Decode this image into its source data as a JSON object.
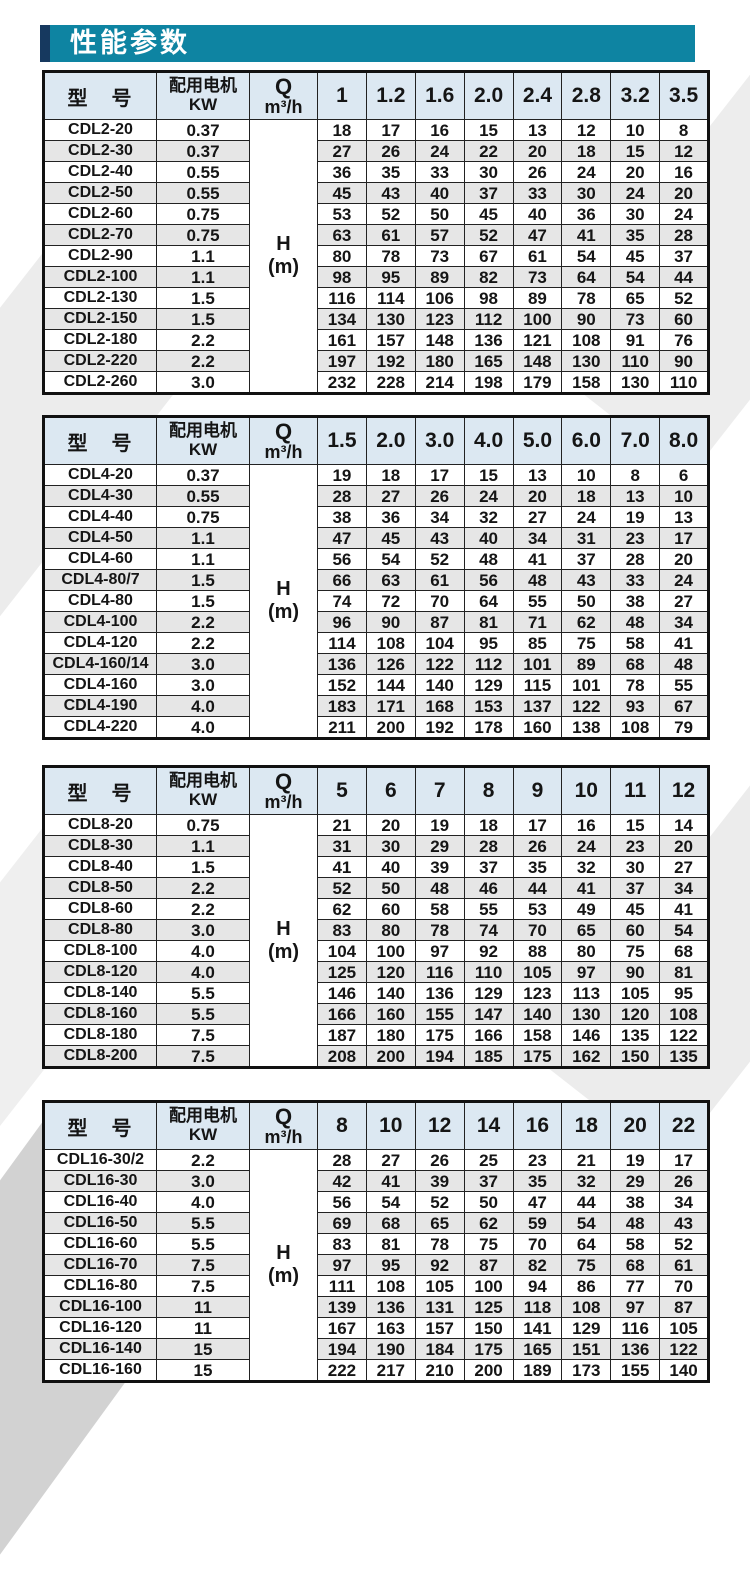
{
  "page_title": "性能参数",
  "colors": {
    "banner_teal": "#0e84a2",
    "banner_navy": "#16395f",
    "header_bg": "#dce8f2",
    "stripe_gray": "#e6e6e6",
    "border": "#111111"
  },
  "header": {
    "model": "型　号",
    "motor1": "配用电机",
    "motor2": "KW",
    "q1": "Q",
    "q2": "m³/h"
  },
  "hcell": {
    "l1": "H",
    "l2": "(m)"
  },
  "tables": [
    {
      "series": "CDL2",
      "flow_columns": [
        "1",
        "1.2",
        "1.6",
        "2.0",
        "2.4",
        "2.8",
        "3.2",
        "3.5"
      ],
      "rows": [
        {
          "model": "CDL2-20",
          "kw": "0.37",
          "values": [
            18,
            17,
            16,
            15,
            13,
            12,
            10,
            8
          ]
        },
        {
          "model": "CDL2-30",
          "kw": "0.37",
          "values": [
            27,
            26,
            24,
            22,
            20,
            18,
            15,
            12
          ]
        },
        {
          "model": "CDL2-40",
          "kw": "0.55",
          "values": [
            36,
            35,
            33,
            30,
            26,
            24,
            20,
            16
          ]
        },
        {
          "model": "CDL2-50",
          "kw": "0.55",
          "values": [
            45,
            43,
            40,
            37,
            33,
            30,
            24,
            20
          ]
        },
        {
          "model": "CDL2-60",
          "kw": "0.75",
          "values": [
            53,
            52,
            50,
            45,
            40,
            36,
            30,
            24
          ]
        },
        {
          "model": "CDL2-70",
          "kw": "0.75",
          "values": [
            63,
            61,
            57,
            52,
            47,
            41,
            35,
            28
          ]
        },
        {
          "model": "CDL2-90",
          "kw": "1.1",
          "values": [
            80,
            78,
            73,
            67,
            61,
            54,
            45,
            37
          ]
        },
        {
          "model": "CDL2-100",
          "kw": "1.1",
          "values": [
            98,
            95,
            89,
            82,
            73,
            64,
            54,
            44
          ]
        },
        {
          "model": "CDL2-130",
          "kw": "1.5",
          "values": [
            116,
            114,
            106,
            98,
            89,
            78,
            65,
            52
          ]
        },
        {
          "model": "CDL2-150",
          "kw": "1.5",
          "values": [
            134,
            130,
            123,
            112,
            100,
            90,
            73,
            60
          ]
        },
        {
          "model": "CDL2-180",
          "kw": "2.2",
          "values": [
            161,
            157,
            148,
            136,
            121,
            108,
            91,
            76
          ]
        },
        {
          "model": "CDL2-220",
          "kw": "2.2",
          "values": [
            197,
            192,
            180,
            165,
            148,
            130,
            110,
            90
          ]
        },
        {
          "model": "CDL2-260",
          "kw": "3.0",
          "values": [
            232,
            228,
            214,
            198,
            179,
            158,
            130,
            110
          ]
        }
      ]
    },
    {
      "series": "CDL4",
      "flow_columns": [
        "1.5",
        "2.0",
        "3.0",
        "4.0",
        "5.0",
        "6.0",
        "7.0",
        "8.0"
      ],
      "rows": [
        {
          "model": "CDL4-20",
          "kw": "0.37",
          "values": [
            19,
            18,
            17,
            15,
            13,
            10,
            8,
            6
          ]
        },
        {
          "model": "CDL4-30",
          "kw": "0.55",
          "values": [
            28,
            27,
            26,
            24,
            20,
            18,
            13,
            10
          ]
        },
        {
          "model": "CDL4-40",
          "kw": "0.75",
          "values": [
            38,
            36,
            34,
            32,
            27,
            24,
            19,
            13
          ]
        },
        {
          "model": "CDL4-50",
          "kw": "1.1",
          "values": [
            47,
            45,
            43,
            40,
            34,
            31,
            23,
            17
          ]
        },
        {
          "model": "CDL4-60",
          "kw": "1.1",
          "values": [
            56,
            54,
            52,
            48,
            41,
            37,
            28,
            20
          ]
        },
        {
          "model": "CDL4-80/7",
          "kw": "1.5",
          "values": [
            66,
            63,
            61,
            56,
            48,
            43,
            33,
            24
          ]
        },
        {
          "model": "CDL4-80",
          "kw": "1.5",
          "values": [
            74,
            72,
            70,
            64,
            55,
            50,
            38,
            27
          ]
        },
        {
          "model": "CDL4-100",
          "kw": "2.2",
          "values": [
            96,
            90,
            87,
            81,
            71,
            62,
            48,
            34
          ]
        },
        {
          "model": "CDL4-120",
          "kw": "2.2",
          "values": [
            114,
            108,
            104,
            95,
            85,
            75,
            58,
            41
          ]
        },
        {
          "model": "CDL4-160/14",
          "kw": "3.0",
          "values": [
            136,
            126,
            122,
            112,
            101,
            89,
            68,
            48
          ]
        },
        {
          "model": "CDL4-160",
          "kw": "3.0",
          "values": [
            152,
            144,
            140,
            129,
            115,
            101,
            78,
            55
          ]
        },
        {
          "model": "CDL4-190",
          "kw": "4.0",
          "values": [
            183,
            171,
            168,
            153,
            137,
            122,
            93,
            67
          ]
        },
        {
          "model": "CDL4-220",
          "kw": "4.0",
          "values": [
            211,
            200,
            192,
            178,
            160,
            138,
            108,
            79
          ]
        }
      ]
    },
    {
      "series": "CDL8",
      "flow_columns": [
        "5",
        "6",
        "7",
        "8",
        "9",
        "10",
        "11",
        "12"
      ],
      "rows": [
        {
          "model": "CDL8-20",
          "kw": "0.75",
          "values": [
            21,
            20,
            19,
            18,
            17,
            16,
            15,
            14
          ]
        },
        {
          "model": "CDL8-30",
          "kw": "1.1",
          "values": [
            31,
            30,
            29,
            28,
            26,
            24,
            23,
            20
          ]
        },
        {
          "model": "CDL8-40",
          "kw": "1.5",
          "values": [
            41,
            40,
            39,
            37,
            35,
            32,
            30,
            27
          ]
        },
        {
          "model": "CDL8-50",
          "kw": "2.2",
          "values": [
            52,
            50,
            48,
            46,
            44,
            41,
            37,
            34
          ]
        },
        {
          "model": "CDL8-60",
          "kw": "2.2",
          "values": [
            62,
            60,
            58,
            55,
            53,
            49,
            45,
            41
          ]
        },
        {
          "model": "CDL8-80",
          "kw": "3.0",
          "values": [
            83,
            80,
            78,
            74,
            70,
            65,
            60,
            54
          ]
        },
        {
          "model": "CDL8-100",
          "kw": "4.0",
          "values": [
            104,
            100,
            97,
            92,
            88,
            80,
            75,
            68
          ]
        },
        {
          "model": "CDL8-120",
          "kw": "4.0",
          "values": [
            125,
            120,
            116,
            110,
            105,
            97,
            90,
            81
          ]
        },
        {
          "model": "CDL8-140",
          "kw": "5.5",
          "values": [
            146,
            140,
            136,
            129,
            123,
            113,
            105,
            95
          ]
        },
        {
          "model": "CDL8-160",
          "kw": "5.5",
          "values": [
            166,
            160,
            155,
            147,
            140,
            130,
            120,
            108
          ]
        },
        {
          "model": "CDL8-180",
          "kw": "7.5",
          "values": [
            187,
            180,
            175,
            166,
            158,
            146,
            135,
            122
          ]
        },
        {
          "model": "CDL8-200",
          "kw": "7.5",
          "values": [
            208,
            200,
            194,
            185,
            175,
            162,
            150,
            135
          ]
        }
      ]
    },
    {
      "series": "CDL16",
      "flow_columns": [
        "8",
        "10",
        "12",
        "14",
        "16",
        "18",
        "20",
        "22"
      ],
      "rows": [
        {
          "model": "CDL16-30/2",
          "kw": "2.2",
          "values": [
            28,
            27,
            26,
            25,
            23,
            21,
            19,
            17
          ]
        },
        {
          "model": "CDL16-30",
          "kw": "3.0",
          "values": [
            42,
            41,
            39,
            37,
            35,
            32,
            29,
            26
          ]
        },
        {
          "model": "CDL16-40",
          "kw": "4.0",
          "values": [
            56,
            54,
            52,
            50,
            47,
            44,
            38,
            34
          ]
        },
        {
          "model": "CDL16-50",
          "kw": "5.5",
          "values": [
            69,
            68,
            65,
            62,
            59,
            54,
            48,
            43
          ]
        },
        {
          "model": "CDL16-60",
          "kw": "5.5",
          "values": [
            83,
            81,
            78,
            75,
            70,
            64,
            58,
            52
          ]
        },
        {
          "model": "CDL16-70",
          "kw": "7.5",
          "values": [
            97,
            95,
            92,
            87,
            82,
            75,
            68,
            61
          ]
        },
        {
          "model": "CDL16-80",
          "kw": "7.5",
          "values": [
            111,
            108,
            105,
            100,
            94,
            86,
            77,
            70
          ]
        },
        {
          "model": "CDL16-100",
          "kw": "11",
          "values": [
            139,
            136,
            131,
            125,
            118,
            108,
            97,
            87
          ]
        },
        {
          "model": "CDL16-120",
          "kw": "11",
          "values": [
            167,
            163,
            157,
            150,
            141,
            129,
            116,
            105
          ]
        },
        {
          "model": "CDL16-140",
          "kw": "15",
          "values": [
            194,
            190,
            184,
            175,
            165,
            151,
            136,
            122
          ]
        },
        {
          "model": "CDL16-160",
          "kw": "15",
          "values": [
            222,
            217,
            210,
            200,
            189,
            173,
            155,
            140
          ]
        }
      ]
    }
  ]
}
